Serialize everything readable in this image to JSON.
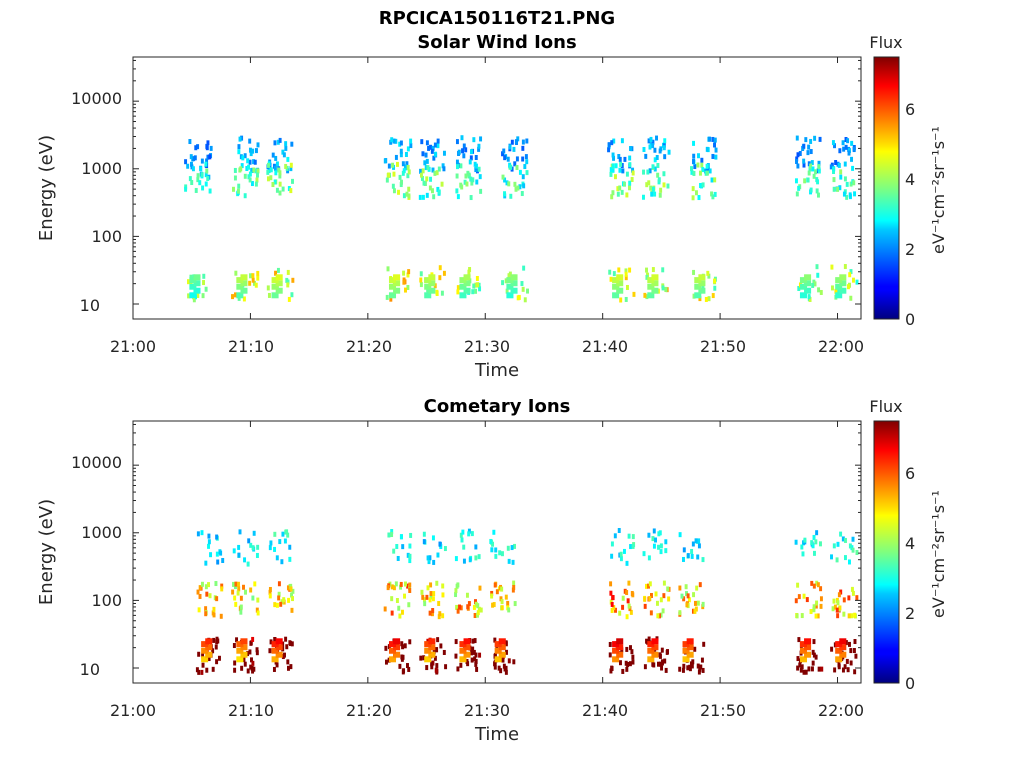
{
  "figure_title": "RPCICA150116T21.PNG",
  "colorbar": {
    "title": "Flux",
    "unit_label": "eV⁻¹cm⁻²sr⁻¹s⁻¹",
    "range": [
      0,
      7.4
    ],
    "ticks": [
      "0",
      "2",
      "4",
      "6"
    ],
    "colormap": "jet"
  },
  "chart_data": [
    {
      "type": "heatmap",
      "title": "Solar Wind Ions",
      "xlabel": "Time",
      "ylabel": "Energy (eV)",
      "y_scale": "log",
      "x_range": [
        "21:00",
        "22:02"
      ],
      "y_range": [
        6,
        45000
      ],
      "x_ticks": [
        "21:00",
        "21:10",
        "21:20",
        "21:30",
        "21:40",
        "21:50",
        "22:00"
      ],
      "y_ticks": [
        "10",
        "100",
        "1000",
        "10000"
      ],
      "bursts": [
        {
          "t": "21:05",
          "peak_flux": 3.6
        },
        {
          "t": "21:09",
          "peak_flux": 4.2
        },
        {
          "t": "21:12",
          "peak_flux": 4.4
        },
        {
          "t": "21:22",
          "peak_flux": 4.4
        },
        {
          "t": "21:25",
          "peak_flux": 4.2
        },
        {
          "t": "21:28",
          "peak_flux": 4.0
        },
        {
          "t": "21:32",
          "peak_flux": 3.8
        },
        {
          "t": "21:41",
          "peak_flux": 4.3
        },
        {
          "t": "21:44",
          "peak_flux": 4.3
        },
        {
          "t": "21:48",
          "peak_flux": 4.2
        },
        {
          "t": "21:57",
          "peak_flux": 3.8
        },
        {
          "t": "22:00",
          "peak_flux": 3.9
        }
      ],
      "energy_bands": [
        {
          "energy_eV": 1600,
          "flux": 2.2
        },
        {
          "energy_eV": 650,
          "flux": 3.4
        },
        {
          "energy_eV": 20,
          "flux": 4.2
        }
      ]
    },
    {
      "type": "heatmap",
      "title": "Cometary Ions",
      "xlabel": "Time",
      "ylabel": "Energy (eV)",
      "y_scale": "log",
      "x_range": [
        "21:00",
        "22:02"
      ],
      "y_range": [
        6,
        45000
      ],
      "x_ticks": [
        "21:00",
        "21:10",
        "21:20",
        "21:30",
        "21:40",
        "21:50",
        "22:00"
      ],
      "y_ticks": [
        "10",
        "100",
        "1000",
        "10000"
      ],
      "bursts": [
        {
          "t": "21:06",
          "peak_flux": 6.2
        },
        {
          "t": "21:09",
          "peak_flux": 6.0
        },
        {
          "t": "21:12",
          "peak_flux": 6.5
        },
        {
          "t": "21:22",
          "peak_flux": 6.6
        },
        {
          "t": "21:25",
          "peak_flux": 6.2
        },
        {
          "t": "21:28",
          "peak_flux": 6.4
        },
        {
          "t": "21:31",
          "peak_flux": 6.3
        },
        {
          "t": "21:41",
          "peak_flux": 6.8
        },
        {
          "t": "21:44",
          "peak_flux": 6.5
        },
        {
          "t": "21:47",
          "peak_flux": 6.3
        },
        {
          "t": "21:57",
          "peak_flux": 6.4
        },
        {
          "t": "22:00",
          "peak_flux": 6.6
        }
      ],
      "energy_bands": [
        {
          "energy_eV": 15,
          "flux": 6.2
        },
        {
          "energy_eV": 100,
          "flux": 3.2
        },
        {
          "energy_eV": 600,
          "flux": 1.8
        }
      ]
    }
  ]
}
